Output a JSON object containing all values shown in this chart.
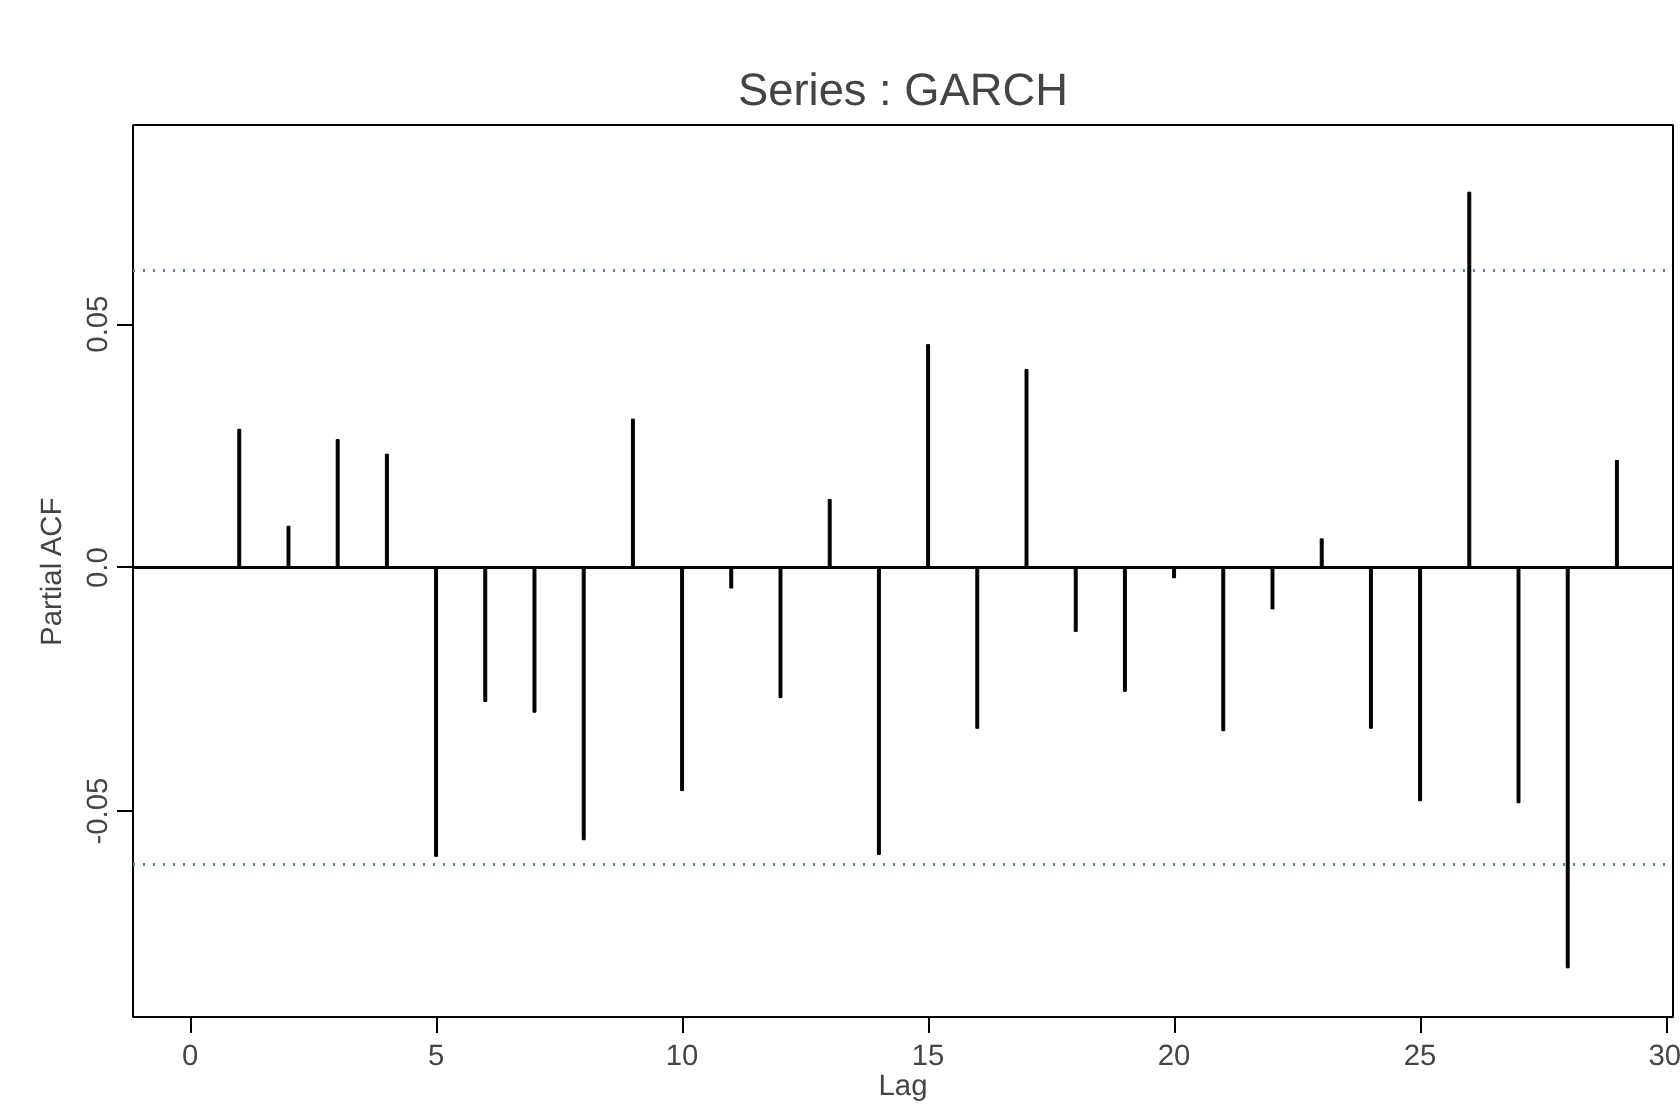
{
  "chart_data": {
    "type": "bar",
    "title": "Series : GARCH",
    "xlabel": "Lag",
    "ylabel": "Partial ACF",
    "x": [
      1,
      2,
      3,
      4,
      5,
      6,
      7,
      8,
      9,
      10,
      11,
      12,
      13,
      14,
      15,
      16,
      17,
      18,
      19,
      20,
      21,
      22,
      23,
      24,
      25,
      26,
      27,
      28,
      29
    ],
    "series": [
      {
        "color": "#000000",
        "values": [
          0.0284,
          0.0085,
          0.0263,
          0.0233,
          -0.0593,
          -0.0275,
          -0.0297,
          -0.0559,
          0.0305,
          -0.0458,
          -0.0042,
          -0.0267,
          0.014,
          -0.0589,
          0.0458,
          -0.033,
          0.0407,
          -0.0131,
          -0.0254,
          -0.0021,
          -0.0335,
          -0.0085,
          0.0059,
          -0.033,
          -0.0479,
          0.0771,
          -0.0483,
          -0.0822,
          0.022
        ]
      }
    ],
    "marker": "none",
    "xlim": [
      -1.16,
      30.14
    ],
    "ylim": [
      -0.0923,
      0.0909
    ],
    "xticks": [
      0,
      5,
      10,
      15,
      20,
      25,
      30
    ],
    "yticks": [
      {
        "value": -0.05,
        "label": "-0.05"
      },
      {
        "value": 0,
        "label": "0.0"
      },
      {
        "value": 0.05,
        "label": "0.05"
      }
    ],
    "ref_lines": [
      {
        "axis": "y",
        "value": 0.061,
        "color": "#4f81bd",
        "line_style": "dotted"
      },
      {
        "axis": "y",
        "value": -0.061,
        "color": "#4f81bd",
        "line_style": "dotted"
      },
      {
        "axis": "y",
        "value": 0,
        "color": "#000000",
        "line_style": "solid"
      }
    ],
    "grid": false
  }
}
